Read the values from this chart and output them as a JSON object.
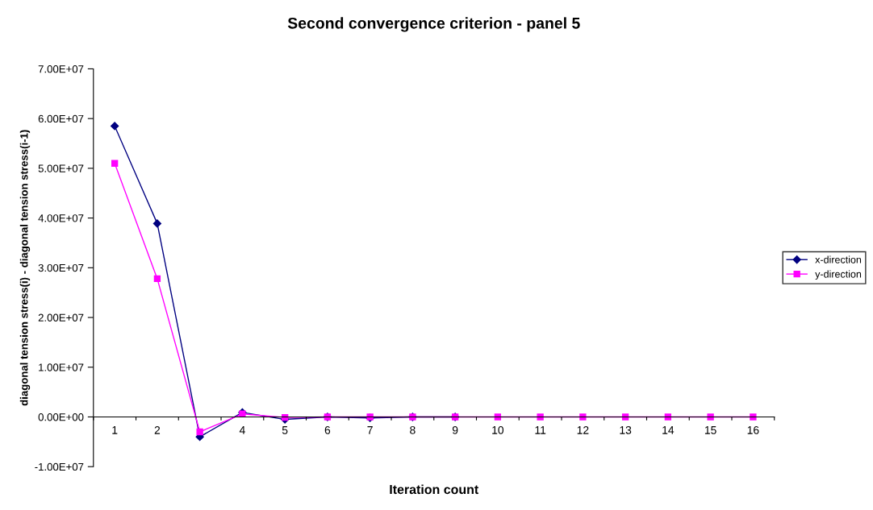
{
  "chart_data": {
    "type": "line",
    "title": "Second convergence criterion - panel 5",
    "xlabel": "Iteration count",
    "ylabel": "diagonal tension stress(i) - diagonal tension stress(i-1)",
    "categories": [
      "1",
      "2",
      null,
      "4",
      "5",
      "6",
      "7",
      "8",
      "9",
      "10",
      "11",
      "12",
      "13",
      "14",
      "15",
      "16"
    ],
    "series": [
      {
        "name": "x-direction",
        "color": "#000080",
        "marker": "diamond",
        "values": [
          58500000,
          38900000,
          -4000000,
          900000,
          -500000,
          0,
          -200000,
          0,
          0,
          null,
          null,
          null,
          null,
          null,
          null,
          null
        ]
      },
      {
        "name": "y-direction",
        "color": "#ff00ff",
        "marker": "square",
        "values": [
          51000000,
          27800000,
          -3000000,
          600000,
          -100000,
          0,
          0,
          0,
          0,
          0,
          0,
          0,
          0,
          0,
          0,
          0
        ]
      }
    ],
    "ylim": [
      -10000000,
      70000000
    ],
    "yticks": [
      {
        "value": -10000000,
        "label": "-1.00E+07"
      },
      {
        "value": 0,
        "label": "0.00E+00"
      },
      {
        "value": 10000000,
        "label": "1.00E+07"
      },
      {
        "value": 20000000,
        "label": "2.00E+07"
      },
      {
        "value": 30000000,
        "label": "3.00E+07"
      },
      {
        "value": 40000000,
        "label": "4.00E+07"
      },
      {
        "value": 50000000,
        "label": "5.00E+07"
      },
      {
        "value": 60000000,
        "label": "6.00E+07"
      },
      {
        "value": 70000000,
        "label": "7.00E+07"
      }
    ],
    "grid": false,
    "legend": "right",
    "line_style": "solid"
  }
}
